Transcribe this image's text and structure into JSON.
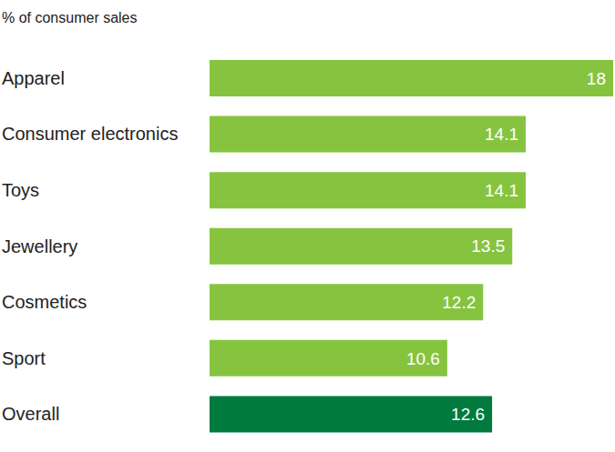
{
  "chart_data": {
    "type": "bar",
    "orientation": "horizontal",
    "subtitle": "% of consumer sales",
    "categories": [
      "Apparel",
      "Consumer electronics",
      "Toys",
      "Jewellery",
      "Cosmetics",
      "Sport",
      "Overall"
    ],
    "values": [
      18,
      14.1,
      14.1,
      13.5,
      12.2,
      10.6,
      12.6
    ],
    "colors": [
      "#86c440",
      "#86c440",
      "#86c440",
      "#86c440",
      "#86c440",
      "#86c440",
      "#007a3d"
    ],
    "data_labels": true,
    "tick_labels": false,
    "grid": false
  }
}
